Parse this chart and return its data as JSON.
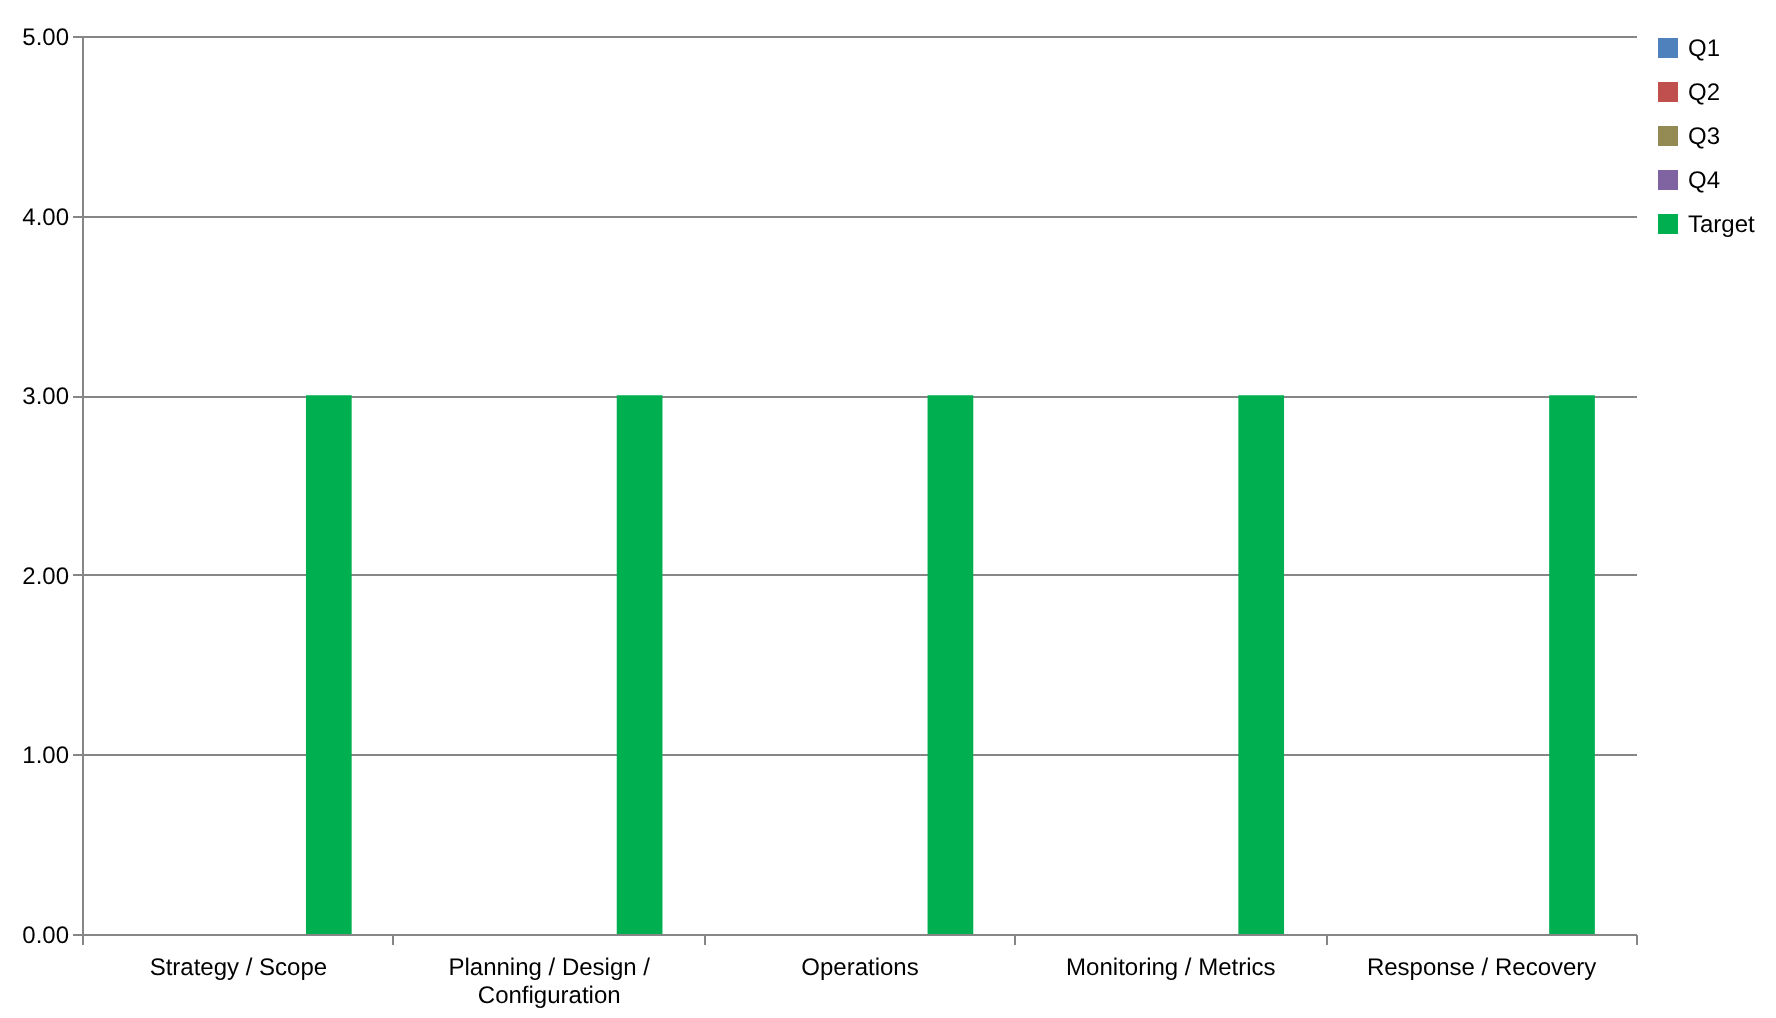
{
  "chart_data": {
    "type": "bar",
    "categories": [
      "Strategy / Scope",
      "Planning / Design / Configuration",
      "Operations",
      "Monitoring / Metrics",
      "Response / Recovery"
    ],
    "series": [
      {
        "name": "Q1",
        "color": "#4f81bd",
        "values": [
          0,
          0,
          0,
          0,
          0
        ]
      },
      {
        "name": "Q2",
        "color": "#c0504d",
        "values": [
          0,
          0,
          0,
          0,
          0
        ]
      },
      {
        "name": "Q3",
        "color": "#948a54",
        "values": [
          0,
          0,
          0,
          0,
          0
        ]
      },
      {
        "name": "Q4",
        "color": "#8064a2",
        "values": [
          0,
          0,
          0,
          0,
          0
        ]
      },
      {
        "name": "Target",
        "color": "#00b050",
        "values": [
          3,
          3,
          3,
          3,
          3
        ]
      }
    ],
    "ylim": [
      0,
      5
    ],
    "yticks": [
      {
        "value": 0,
        "label": "0.00"
      },
      {
        "value": 1,
        "label": "1.00"
      },
      {
        "value": 2,
        "label": "2.00"
      },
      {
        "value": 3,
        "label": "3.00"
      },
      {
        "value": 4,
        "label": "4.00"
      },
      {
        "value": 5,
        "label": "5.00"
      }
    ],
    "grid": "y",
    "legend": "right"
  }
}
